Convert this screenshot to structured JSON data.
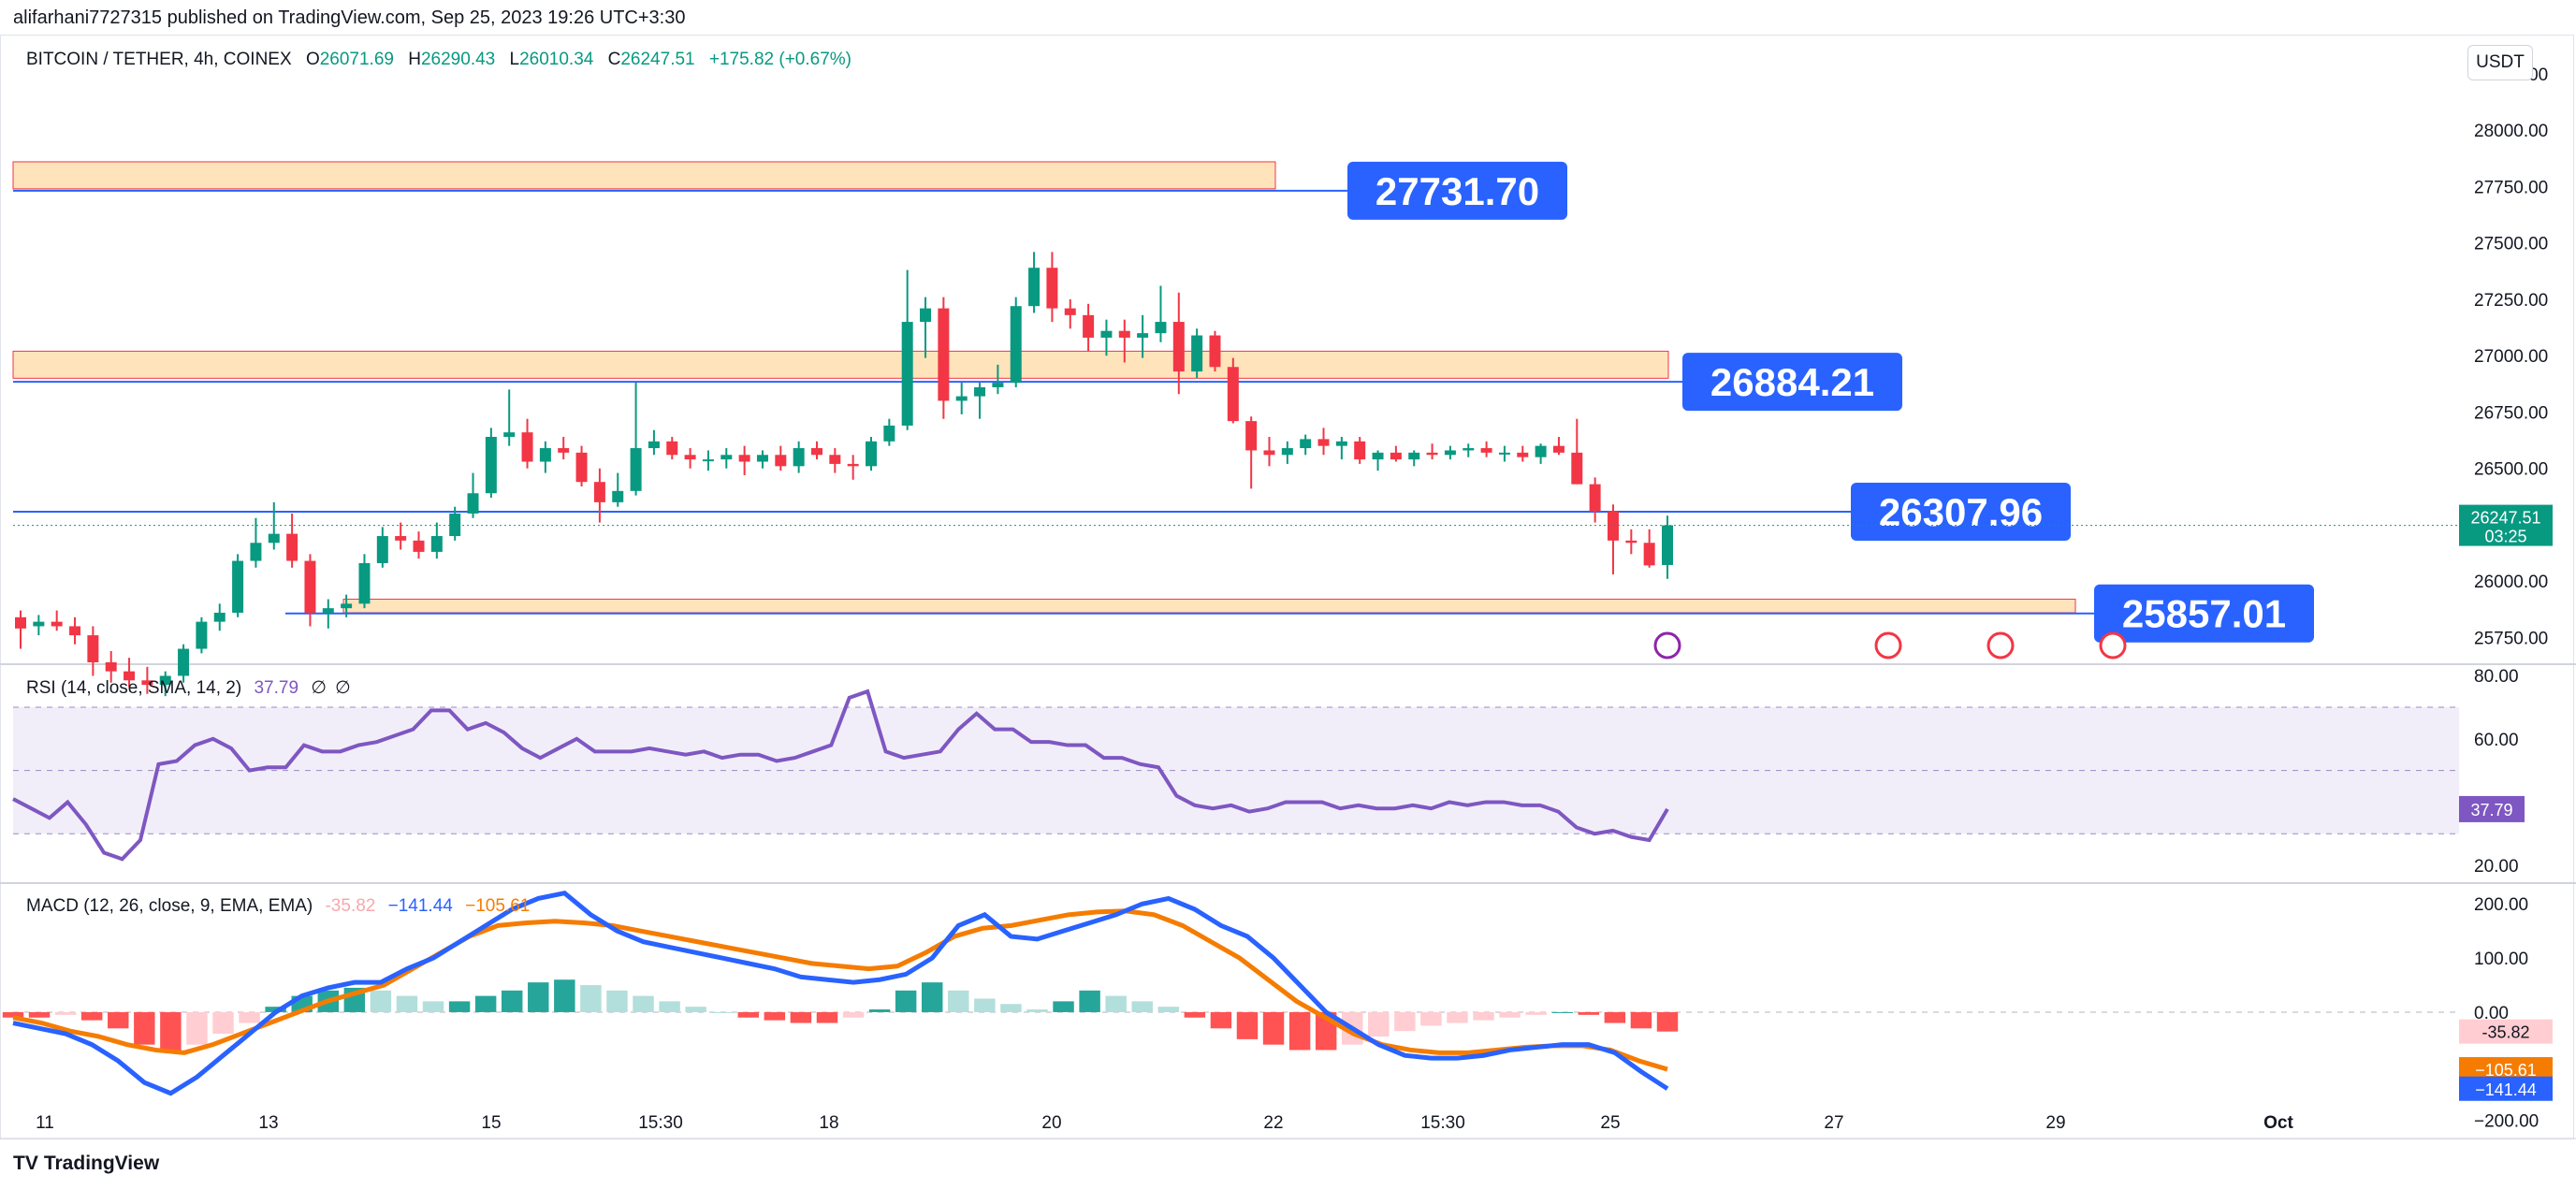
{
  "header": {
    "published": "alifarhani7727315 published on TradingView.com, Sep 25, 2023 19:26 UTC+3:30",
    "currency_button": "USDT",
    "brand": "TradingView"
  },
  "symbol": {
    "name": "BITCOIN / TETHER, 4h, COINEX",
    "o_label": "O",
    "o": "26071.69",
    "h_label": "H",
    "h": "26290.43",
    "l_label": "L",
    "l": "26010.34",
    "c_label": "C",
    "c": "26247.51",
    "change": "+175.82 (+0.67%)"
  },
  "colors": {
    "up": "#089981",
    "down": "#f23645",
    "level_line": "#2962ff",
    "zone_fill": "#ffe0b2",
    "rsi_line": "#7e57c2",
    "macd_line": "#2962ff",
    "signal_line": "#f57c00"
  },
  "chart_data": [
    {
      "type": "candlestick",
      "title": "BITCOIN / TETHER, 4h, COINEX",
      "y_range": [
        25640,
        28420
      ],
      "y_ticks": [
        "28250.00",
        "28000.00",
        "27750.00",
        "27500.00",
        "27250.00",
        "27000.00",
        "26750.00",
        "26500.00",
        "26250.00",
        "26000.00",
        "25750.00"
      ],
      "x_ticks": [
        "11",
        "13",
        "15",
        "15:30",
        "18",
        "20",
        "22",
        "15:30",
        "25",
        "27",
        "29",
        "Oct"
      ],
      "last_price": "26247.51",
      "countdown": "03:25",
      "levels": [
        {
          "label": "27731.70",
          "value": 27731.7
        },
        {
          "label": "26884.21",
          "value": 26884.21
        },
        {
          "label": "26307.96",
          "value": 26307.96
        },
        {
          "label": "25857.01",
          "value": 25857.01
        }
      ],
      "zones": [
        {
          "low": 27740,
          "high": 27860
        },
        {
          "low": 26900,
          "high": 27020
        },
        {
          "low": 25860,
          "high": 25920
        }
      ],
      "ohlc": [
        [
          25840,
          25870,
          25700,
          25790
        ],
        [
          25800,
          25850,
          25760,
          25820
        ],
        [
          25820,
          25870,
          25780,
          25800
        ],
        [
          25800,
          25840,
          25720,
          25760
        ],
        [
          25760,
          25800,
          25580,
          25640
        ],
        [
          25640,
          25690,
          25550,
          25600
        ],
        [
          25600,
          25660,
          25530,
          25560
        ],
        [
          25560,
          25620,
          25500,
          25540
        ],
        [
          25540,
          25600,
          25490,
          25580
        ],
        [
          25580,
          25720,
          25550,
          25700
        ],
        [
          25700,
          25840,
          25680,
          25820
        ],
        [
          25820,
          25900,
          25780,
          25860
        ],
        [
          25860,
          26120,
          25840,
          26090
        ],
        [
          26090,
          26280,
          26060,
          26170
        ],
        [
          26170,
          26350,
          26140,
          26210
        ],
        [
          26210,
          26300,
          26060,
          26090
        ],
        [
          26090,
          26120,
          25800,
          25860
        ],
        [
          25860,
          25920,
          25790,
          25880
        ],
        [
          25880,
          25940,
          25840,
          25900
        ],
        [
          25900,
          26120,
          25880,
          26080
        ],
        [
          26080,
          26240,
          26060,
          26200
        ],
        [
          26200,
          26260,
          26140,
          26180
        ],
        [
          26180,
          26220,
          26100,
          26130
        ],
        [
          26130,
          26260,
          26100,
          26200
        ],
        [
          26200,
          26330,
          26180,
          26300
        ],
        [
          26300,
          26480,
          26280,
          26390
        ],
        [
          26390,
          26680,
          26370,
          26640
        ],
        [
          26640,
          26850,
          26600,
          26660
        ],
        [
          26660,
          26720,
          26500,
          26530
        ],
        [
          26530,
          26620,
          26480,
          26590
        ],
        [
          26590,
          26640,
          26540,
          26570
        ],
        [
          26570,
          26600,
          26420,
          26440
        ],
        [
          26440,
          26500,
          26260,
          26350
        ],
        [
          26350,
          26480,
          26330,
          26400
        ],
        [
          26400,
          26880,
          26380,
          26590
        ],
        [
          26590,
          26670,
          26560,
          26620
        ],
        [
          26620,
          26640,
          26540,
          26560
        ],
        [
          26560,
          26590,
          26500,
          26540
        ],
        [
          26540,
          26580,
          26490,
          26540
        ],
        [
          26540,
          26590,
          26500,
          26560
        ],
        [
          26560,
          26600,
          26470,
          26530
        ],
        [
          26530,
          26580,
          26500,
          26560
        ],
        [
          26560,
          26600,
          26490,
          26510
        ],
        [
          26510,
          26620,
          26480,
          26590
        ],
        [
          26590,
          26620,
          26540,
          26560
        ],
        [
          26560,
          26590,
          26480,
          26520
        ],
        [
          26520,
          26560,
          26450,
          26510
        ],
        [
          26510,
          26640,
          26490,
          26620
        ],
        [
          26620,
          26720,
          26600,
          26690
        ],
        [
          26690,
          27380,
          26670,
          27150
        ],
        [
          27150,
          27260,
          26990,
          27210
        ],
        [
          27210,
          27260,
          26720,
          26800
        ],
        [
          26800,
          26880,
          26740,
          26820
        ],
        [
          26820,
          26880,
          26720,
          26860
        ],
        [
          26860,
          26960,
          26830,
          26880
        ],
        [
          26880,
          27260,
          26860,
          27220
        ],
        [
          27220,
          27460,
          27190,
          27390
        ],
        [
          27390,
          27460,
          27150,
          27210
        ],
        [
          27210,
          27250,
          27120,
          27180
        ],
        [
          27180,
          27230,
          27020,
          27080
        ],
        [
          27080,
          27160,
          27000,
          27110
        ],
        [
          27110,
          27160,
          26970,
          27080
        ],
        [
          27080,
          27180,
          26990,
          27100
        ],
        [
          27100,
          27310,
          27060,
          27150
        ],
        [
          27150,
          27280,
          26830,
          26930
        ],
        [
          26930,
          27120,
          26900,
          27090
        ],
        [
          27090,
          27110,
          26930,
          26950
        ],
        [
          26950,
          26990,
          26700,
          26710
        ],
        [
          26710,
          26730,
          26410,
          26580
        ],
        [
          26580,
          26640,
          26510,
          26560
        ],
        [
          26560,
          26620,
          26520,
          26590
        ],
        [
          26590,
          26650,
          26560,
          26630
        ],
        [
          26630,
          26680,
          26560,
          26600
        ],
        [
          26600,
          26640,
          26540,
          26620
        ],
        [
          26620,
          26640,
          26520,
          26540
        ],
        [
          26540,
          26580,
          26490,
          26570
        ],
        [
          26570,
          26600,
          26530,
          26540
        ],
        [
          26540,
          26580,
          26510,
          26570
        ],
        [
          26570,
          26610,
          26540,
          26560
        ],
        [
          26560,
          26600,
          26540,
          26580
        ],
        [
          26580,
          26610,
          26550,
          26590
        ],
        [
          26590,
          26620,
          26550,
          26570
        ],
        [
          26570,
          26600,
          26530,
          26570
        ],
        [
          26570,
          26600,
          26530,
          26550
        ],
        [
          26550,
          26610,
          26520,
          26600
        ],
        [
          26600,
          26640,
          26560,
          26570
        ],
        [
          26570,
          26720,
          26430,
          26430
        ],
        [
          26430,
          26460,
          26260,
          26310
        ],
        [
          26310,
          26340,
          26030,
          26180
        ],
        [
          26180,
          26230,
          26120,
          26170
        ],
        [
          26170,
          26230,
          26060,
          26070
        ],
        [
          26071.69,
          26290.43,
          26010.34,
          26247.51
        ]
      ]
    },
    {
      "type": "line",
      "title": "RSI (14, close, SMA, 14, 2)",
      "current_value": "37.79",
      "flags": [
        "∅",
        "∅"
      ],
      "y_range": [
        15,
        83
      ],
      "y_ticks": [
        "80.00",
        "60.00",
        "20.00"
      ],
      "bands": {
        "upper": 70,
        "middle": 50,
        "lower": 30
      },
      "values": [
        41,
        38,
        35,
        40,
        33,
        24,
        22,
        28,
        52,
        53,
        58,
        60,
        57,
        50,
        51,
        51,
        58,
        56,
        56,
        58,
        59,
        61,
        63,
        69,
        69,
        63,
        65,
        62,
        57,
        54,
        57,
        60,
        56,
        56,
        56,
        57,
        56,
        55,
        56,
        54,
        55,
        55,
        53,
        54,
        56,
        58,
        73,
        75,
        56,
        54,
        55,
        56,
        63,
        68,
        63,
        63,
        59,
        59,
        58,
        58,
        54,
        54,
        52,
        51,
        42,
        39,
        38,
        39,
        37,
        38,
        40,
        40,
        40,
        38,
        39,
        38,
        38,
        39,
        38,
        40,
        39,
        40,
        40,
        39,
        39,
        37,
        32,
        30,
        31,
        29,
        28,
        37.79
      ]
    },
    {
      "type": "line",
      "title": "MACD (12, 26, close, 9, EMA, EMA)",
      "legend_values": [
        "-35.82",
        "−141.44",
        "−105.61"
      ],
      "y_range": [
        -230,
        235
      ],
      "y_ticks": [
        "200.00",
        "100.00",
        "0.00",
        "−100.00",
        "−200.00"
      ],
      "price_labels": [
        "-35.82",
        "−105.61",
        "−141.44"
      ],
      "series": [
        {
          "name": "MACD",
          "values": [
            -20,
            -30,
            -40,
            -60,
            -90,
            -130,
            -150,
            -120,
            -80,
            -40,
            0,
            30,
            45,
            55,
            55,
            80,
            100,
            130,
            160,
            190,
            210,
            220,
            180,
            150,
            130,
            120,
            110,
            100,
            90,
            80,
            65,
            60,
            55,
            60,
            70,
            100,
            160,
            180,
            140,
            135,
            150,
            165,
            180,
            200,
            210,
            190,
            160,
            140,
            100,
            50,
            0,
            -30,
            -60,
            -80,
            -85,
            -85,
            -80,
            -70,
            -65,
            -60,
            -60,
            -75,
            -110,
            -141.44
          ]
        },
        {
          "name": "Signal",
          "values": [
            -10,
            -20,
            -35,
            -45,
            -60,
            -70,
            -75,
            -60,
            -40,
            -20,
            0,
            20,
            35,
            50,
            80,
            110,
            140,
            160,
            165,
            168,
            165,
            160,
            150,
            140,
            130,
            120,
            110,
            100,
            90,
            85,
            80,
            85,
            110,
            140,
            155,
            160,
            170,
            180,
            185,
            187,
            180,
            160,
            130,
            100,
            60,
            20,
            -10,
            -40,
            -60,
            -70,
            -75,
            -75,
            -70,
            -65,
            -62,
            -62,
            -70,
            -90,
            -105.61
          ]
        },
        {
          "name": "Histogram",
          "values": [
            -10,
            -10,
            -5,
            -15,
            -30,
            -60,
            -75,
            -60,
            -40,
            -20,
            10,
            30,
            40,
            45,
            40,
            30,
            20,
            20,
            30,
            40,
            55,
            60,
            50,
            40,
            30,
            20,
            10,
            0,
            -10,
            -15,
            -20,
            -20,
            -10,
            5,
            40,
            55,
            40,
            25,
            15,
            5,
            20,
            40,
            30,
            20,
            10,
            -10,
            -30,
            -50,
            -60,
            -70,
            -70,
            -60,
            -45,
            -35,
            -25,
            -20,
            -15,
            -10,
            -5,
            0,
            -5,
            -20,
            -30,
            -35.82
          ]
        }
      ]
    }
  ]
}
